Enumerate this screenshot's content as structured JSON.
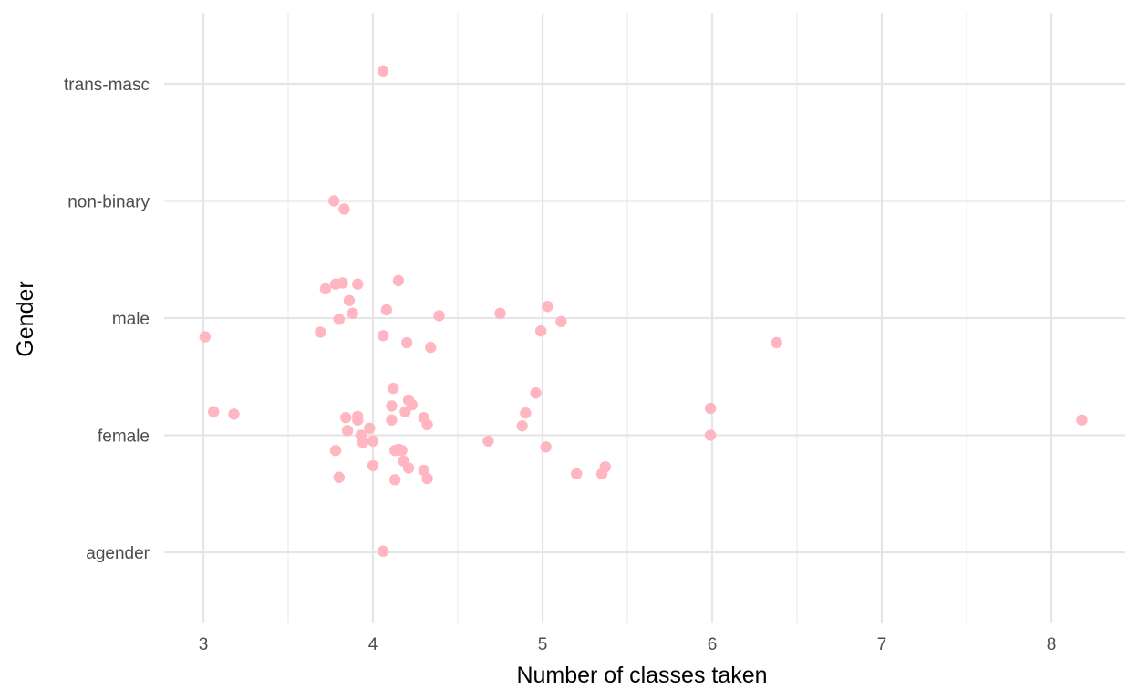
{
  "chart_data": {
    "type": "scatter",
    "title": "",
    "xlabel": "Number of classes taken",
    "ylabel": "Gender",
    "xlim": [
      2.75,
      8.45
    ],
    "x_ticks": [
      3,
      4,
      5,
      6,
      7,
      8
    ],
    "x_tick_labels": [
      "3",
      "4",
      "5",
      "6",
      "7",
      "8"
    ],
    "x_minor_ticks": [
      3.5,
      4.5,
      5.5,
      6.5,
      7.5
    ],
    "categories": [
      "agender",
      "female",
      "male",
      "non-binary",
      "trans-masc"
    ],
    "grid": true,
    "legend": "none",
    "point_color": "#FFB6C1",
    "points": [
      {
        "x": 4.06,
        "y": "trans-masc",
        "jitter": 0.11
      },
      {
        "x": 3.77,
        "y": "non-binary",
        "jitter": 0.0
      },
      {
        "x": 3.83,
        "y": "non-binary",
        "jitter": -0.07
      },
      {
        "x": 3.72,
        "y": "male",
        "jitter": 0.25
      },
      {
        "x": 3.78,
        "y": "male",
        "jitter": 0.29
      },
      {
        "x": 3.82,
        "y": "male",
        "jitter": 0.3
      },
      {
        "x": 3.91,
        "y": "male",
        "jitter": 0.29
      },
      {
        "x": 4.15,
        "y": "male",
        "jitter": 0.32
      },
      {
        "x": 3.86,
        "y": "male",
        "jitter": 0.15
      },
      {
        "x": 4.08,
        "y": "male",
        "jitter": 0.07
      },
      {
        "x": 3.88,
        "y": "male",
        "jitter": 0.04
      },
      {
        "x": 3.8,
        "y": "male",
        "jitter": -0.01
      },
      {
        "x": 4.39,
        "y": "male",
        "jitter": 0.02
      },
      {
        "x": 4.75,
        "y": "male",
        "jitter": 0.04
      },
      {
        "x": 5.03,
        "y": "male",
        "jitter": 0.1
      },
      {
        "x": 5.11,
        "y": "male",
        "jitter": -0.03
      },
      {
        "x": 4.99,
        "y": "male",
        "jitter": -0.11
      },
      {
        "x": 3.69,
        "y": "male",
        "jitter": -0.12
      },
      {
        "x": 4.06,
        "y": "male",
        "jitter": -0.15
      },
      {
        "x": 3.01,
        "y": "male",
        "jitter": -0.16
      },
      {
        "x": 4.2,
        "y": "male",
        "jitter": -0.21
      },
      {
        "x": 4.34,
        "y": "male",
        "jitter": -0.25
      },
      {
        "x": 6.38,
        "y": "male",
        "jitter": -0.21
      },
      {
        "x": 4.12,
        "y": "female",
        "jitter": 0.4
      },
      {
        "x": 4.96,
        "y": "female",
        "jitter": 0.36
      },
      {
        "x": 4.21,
        "y": "female",
        "jitter": 0.3
      },
      {
        "x": 4.23,
        "y": "female",
        "jitter": 0.26
      },
      {
        "x": 4.11,
        "y": "female",
        "jitter": 0.25
      },
      {
        "x": 5.99,
        "y": "female",
        "jitter": 0.23
      },
      {
        "x": 3.06,
        "y": "female",
        "jitter": 0.2
      },
      {
        "x": 3.18,
        "y": "female",
        "jitter": 0.18
      },
      {
        "x": 4.19,
        "y": "female",
        "jitter": 0.2
      },
      {
        "x": 4.9,
        "y": "female",
        "jitter": 0.19
      },
      {
        "x": 3.84,
        "y": "female",
        "jitter": 0.15
      },
      {
        "x": 3.91,
        "y": "female",
        "jitter": 0.16
      },
      {
        "x": 3.91,
        "y": "female",
        "jitter": 0.13
      },
      {
        "x": 4.11,
        "y": "female",
        "jitter": 0.13
      },
      {
        "x": 4.3,
        "y": "female",
        "jitter": 0.15
      },
      {
        "x": 4.32,
        "y": "female",
        "jitter": 0.09
      },
      {
        "x": 4.88,
        "y": "female",
        "jitter": 0.08
      },
      {
        "x": 3.85,
        "y": "female",
        "jitter": 0.04
      },
      {
        "x": 3.98,
        "y": "female",
        "jitter": 0.06
      },
      {
        "x": 3.93,
        "y": "female",
        "jitter": 0.0
      },
      {
        "x": 5.99,
        "y": "female",
        "jitter": 0.0
      },
      {
        "x": 8.18,
        "y": "female",
        "jitter": 0.13
      },
      {
        "x": 3.94,
        "y": "female",
        "jitter": -0.06
      },
      {
        "x": 4.0,
        "y": "female",
        "jitter": -0.05
      },
      {
        "x": 4.68,
        "y": "female",
        "jitter": -0.05
      },
      {
        "x": 5.02,
        "y": "female",
        "jitter": -0.1
      },
      {
        "x": 3.78,
        "y": "female",
        "jitter": -0.13
      },
      {
        "x": 4.13,
        "y": "female",
        "jitter": -0.13
      },
      {
        "x": 4.15,
        "y": "female",
        "jitter": -0.12
      },
      {
        "x": 4.17,
        "y": "female",
        "jitter": -0.13
      },
      {
        "x": 4.18,
        "y": "female",
        "jitter": -0.22
      },
      {
        "x": 4.0,
        "y": "female",
        "jitter": -0.26
      },
      {
        "x": 4.21,
        "y": "female",
        "jitter": -0.28
      },
      {
        "x": 4.3,
        "y": "female",
        "jitter": -0.3
      },
      {
        "x": 5.37,
        "y": "female",
        "jitter": -0.27
      },
      {
        "x": 5.2,
        "y": "female",
        "jitter": -0.33
      },
      {
        "x": 5.35,
        "y": "female",
        "jitter": -0.33
      },
      {
        "x": 3.8,
        "y": "female",
        "jitter": -0.36
      },
      {
        "x": 4.13,
        "y": "female",
        "jitter": -0.38
      },
      {
        "x": 4.32,
        "y": "female",
        "jitter": -0.37
      },
      {
        "x": 4.06,
        "y": "agender",
        "jitter": 0.01
      }
    ]
  }
}
